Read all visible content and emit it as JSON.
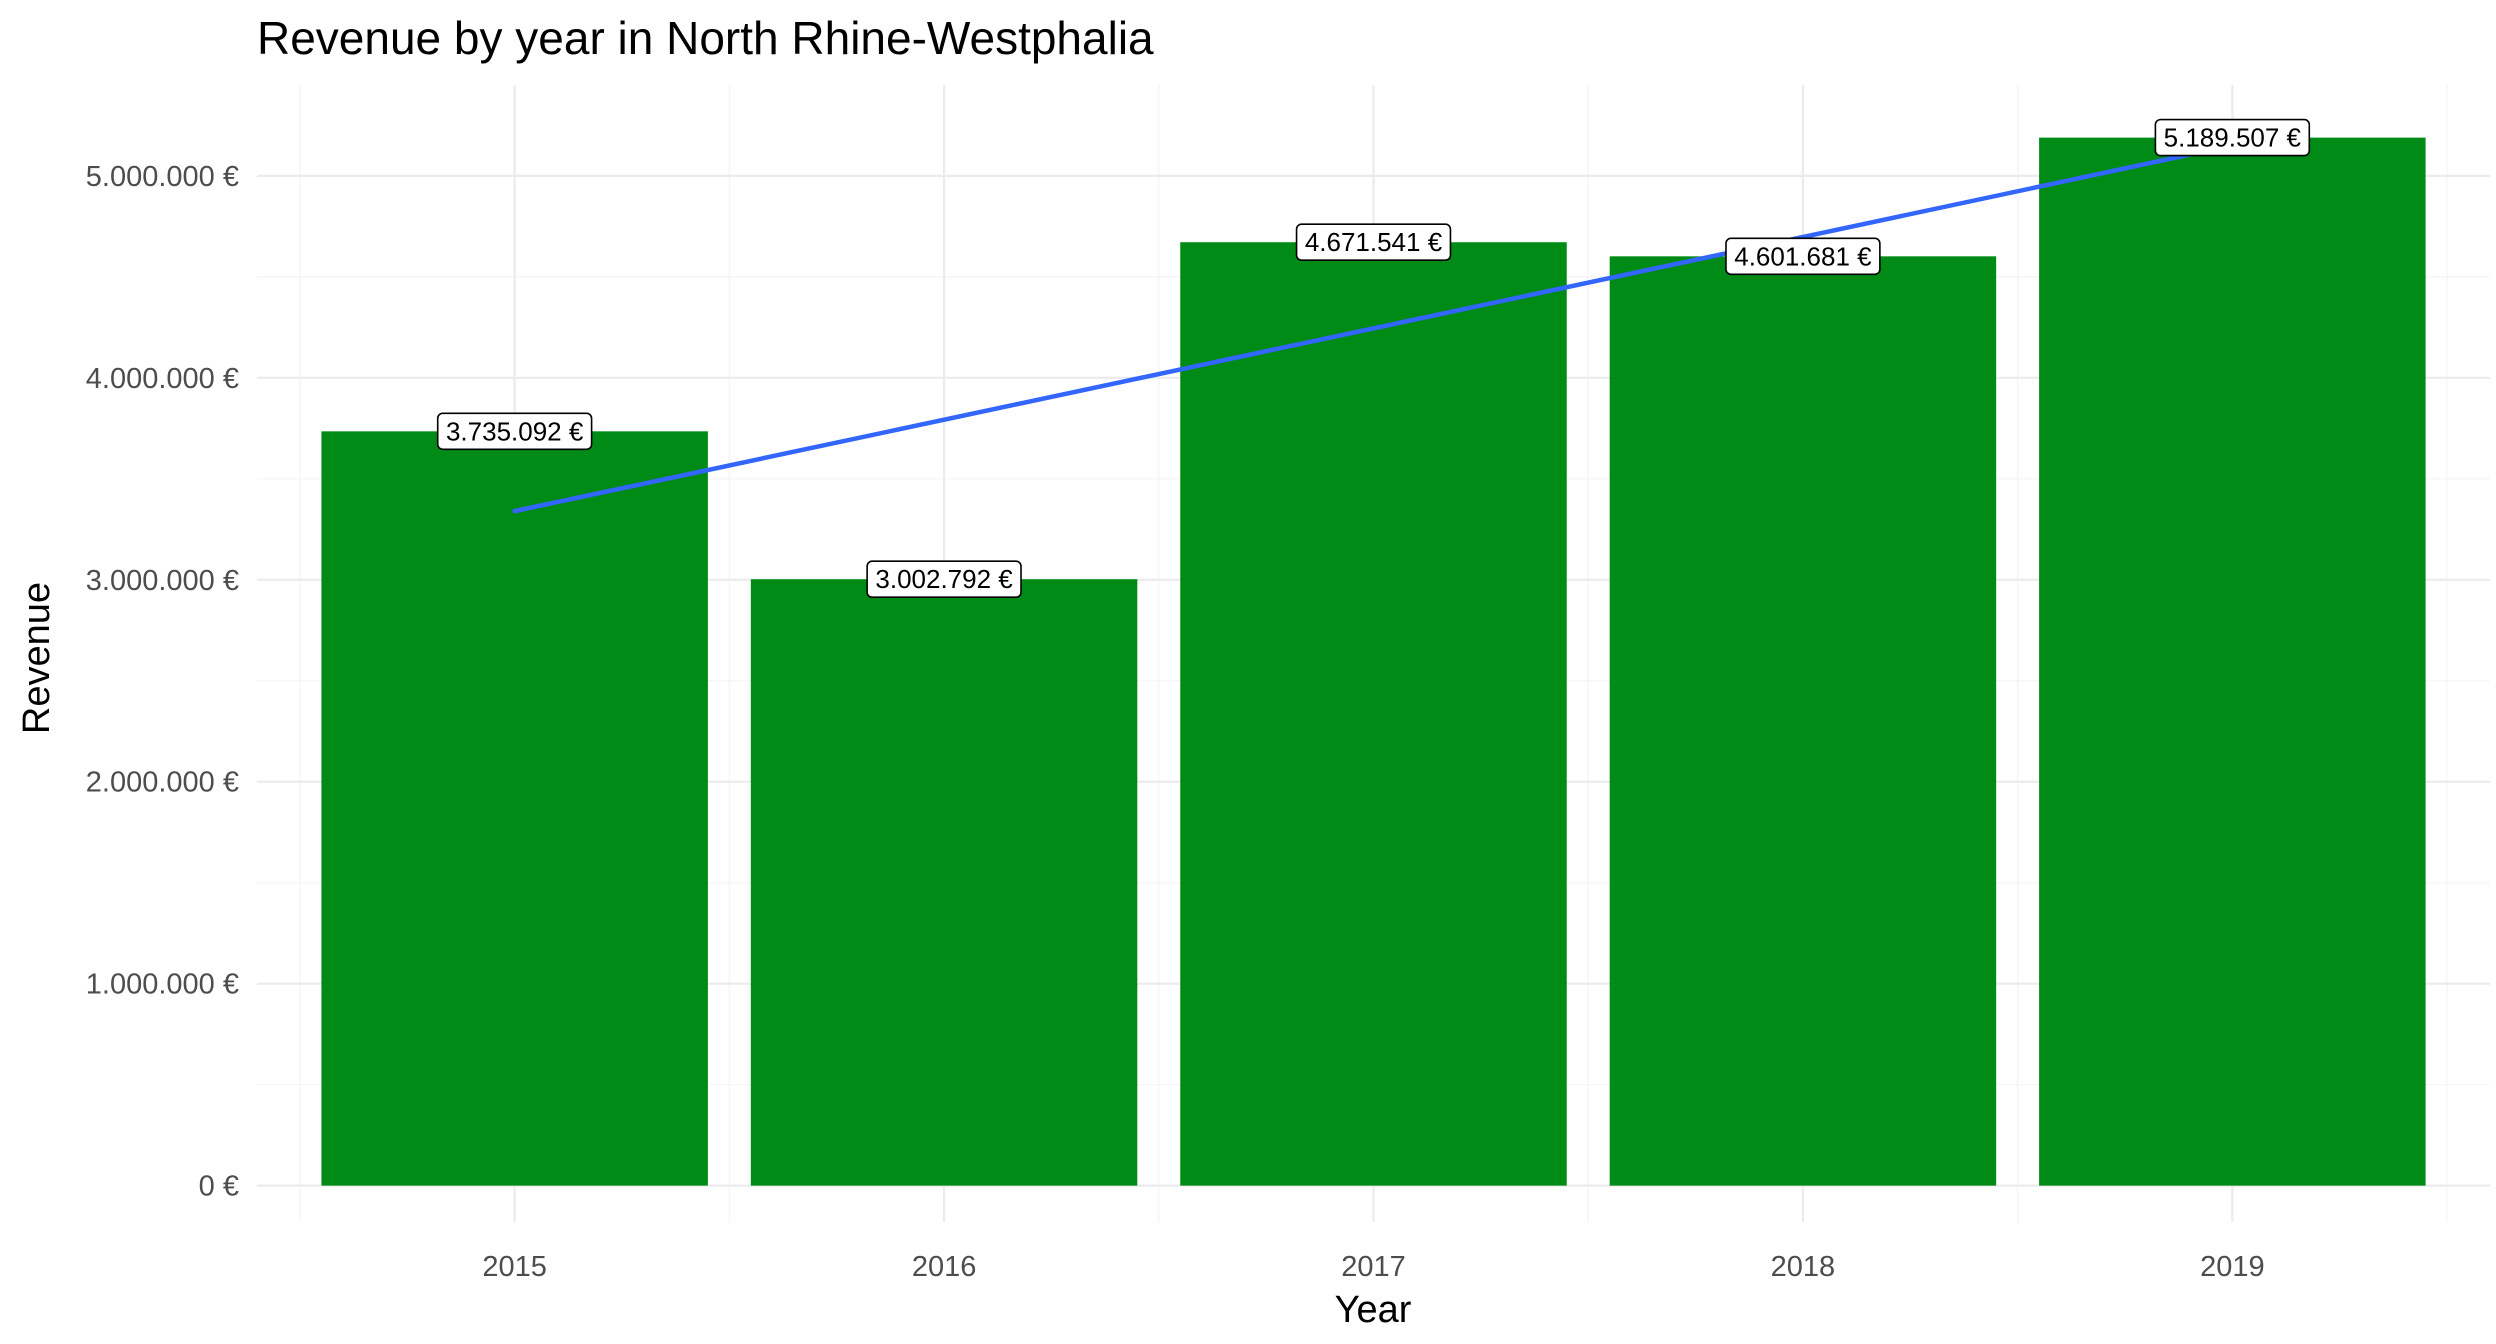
{
  "chart_data": {
    "type": "bar",
    "title": "Revenue by year in North Rhine-Westphalia",
    "xlabel": "Year",
    "ylabel": "Revenue",
    "categories": [
      "2015",
      "2016",
      "2017",
      "2018",
      "2019"
    ],
    "values": [
      3735092,
      3002792,
      4671541,
      4601681,
      5189507
    ],
    "data_labels": [
      "3.735.092 €",
      "3.002.792 €",
      "4.671.541 €",
      "4.601.681 €",
      "5.189.507 €"
    ],
    "y_ticks": [
      0,
      1000000,
      2000000,
      3000000,
      4000000,
      5000000
    ],
    "y_tick_labels": [
      "0 €",
      "1.000.000 €",
      "2.000.000 €",
      "3.000.000 €",
      "4.000.000 €",
      "5.000.000 €"
    ],
    "ylim": [
      -180000,
      5450000
    ],
    "bar_color": "#008b17",
    "trend_line": {
      "type": "linear",
      "color": "#3366ff",
      "start": {
        "x": "2015",
        "y": 3340000
      },
      "end": {
        "x": "2019",
        "y": 5150000
      }
    },
    "grid": true,
    "legend": "none"
  }
}
